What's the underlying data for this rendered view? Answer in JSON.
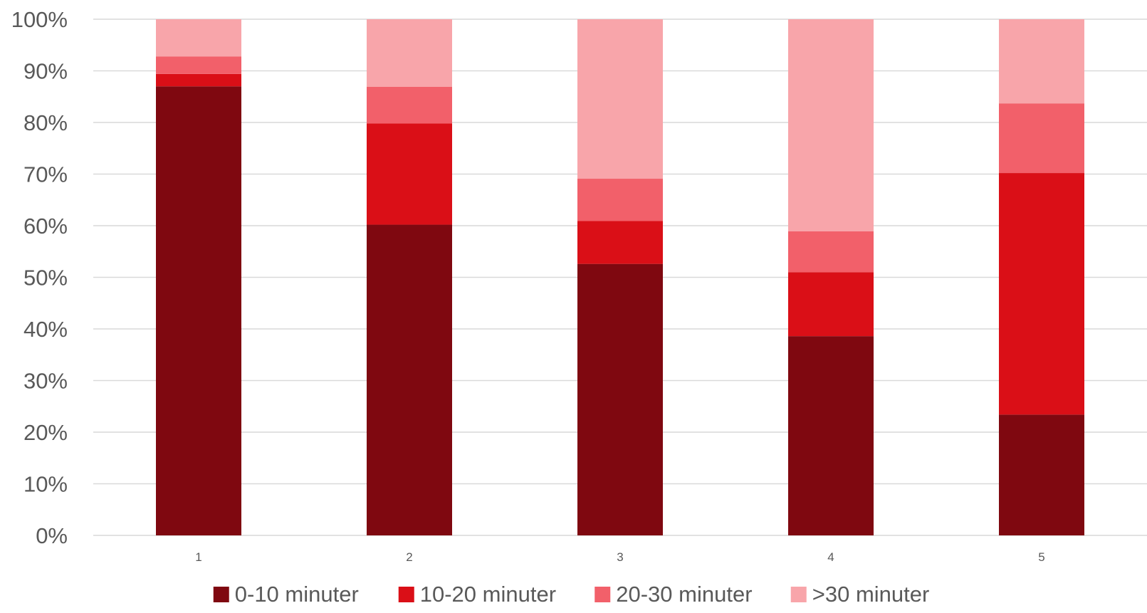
{
  "chart_data": {
    "type": "bar",
    "stacked": true,
    "normalized": true,
    "categories": [
      "1",
      "2",
      "3",
      "4",
      "5"
    ],
    "series": [
      {
        "name": "0-10 minuter",
        "color": "#7f0810",
        "values": [
          87,
          60.2,
          52.6,
          38.6,
          23.4
        ]
      },
      {
        "name": "10-20 minuter",
        "color": "#da0f17",
        "values": [
          2.4,
          19.6,
          8.3,
          12.4,
          46.8
        ]
      },
      {
        "name": "20-30 minuter",
        "color": "#f2606a",
        "values": [
          3.4,
          7.1,
          8.2,
          7.9,
          13.5
        ]
      },
      {
        "name": ">30 minuter",
        "color": "#f8a5aa",
        "values": [
          7.2,
          13.1,
          30.9,
          41.1,
          16.3
        ]
      }
    ],
    "y_ticks": [
      "0%",
      "10%",
      "20%",
      "30%",
      "40%",
      "50%",
      "60%",
      "70%",
      "80%",
      "90%",
      "100%"
    ],
    "ylim": [
      0,
      100
    ],
    "grid": true,
    "legend_position": "bottom",
    "title": "",
    "xlabel": "",
    "ylabel": ""
  }
}
